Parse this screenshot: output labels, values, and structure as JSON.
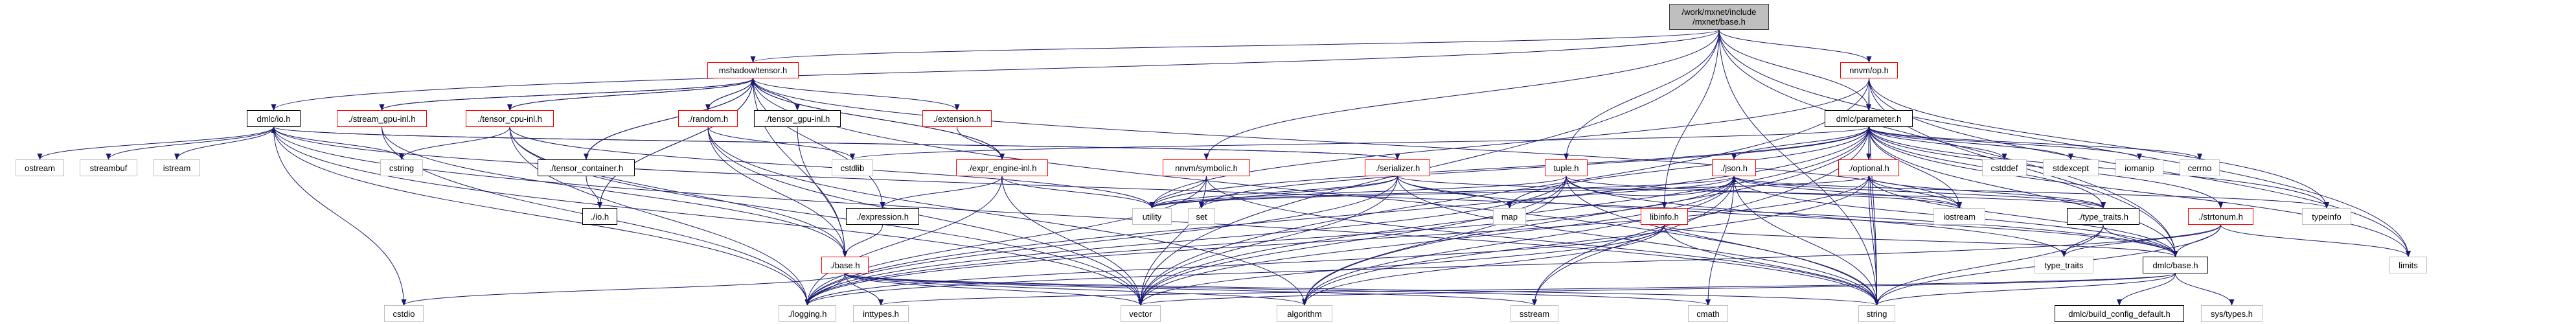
{
  "colors": {
    "edge": "#191970",
    "red": "#ff0000",
    "doc": "#000000",
    "ext": "#bfbfbf",
    "root_fill": "#bfbfbf"
  },
  "nodes": [
    {
      "id": "root",
      "label": "/work/mxnet/include\n/mxnet/base.h",
      "style": "root"
    },
    {
      "id": "mshadow_tensor",
      "label": "mshadow/tensor.h",
      "style": "red"
    },
    {
      "id": "nnvm_op",
      "label": "nnvm/op.h",
      "style": "red"
    },
    {
      "id": "dmlc_io",
      "label": "dmlc/io.h",
      "style": "doc"
    },
    {
      "id": "stream_gpu",
      "label": "./stream_gpu-inl.h",
      "style": "red"
    },
    {
      "id": "tensor_cpu",
      "label": "./tensor_cpu-inl.h",
      "style": "red"
    },
    {
      "id": "random",
      "label": "./random.h",
      "style": "red"
    },
    {
      "id": "tensor_gpu",
      "label": "./tensor_gpu-inl.h",
      "style": "doc"
    },
    {
      "id": "extension",
      "label": "./extension.h",
      "style": "red"
    },
    {
      "id": "dmlc_parameter",
      "label": "dmlc/parameter.h",
      "style": "doc"
    },
    {
      "id": "ostream",
      "label": "ostream",
      "style": "ext"
    },
    {
      "id": "streambuf",
      "label": "streambuf",
      "style": "ext"
    },
    {
      "id": "istream",
      "label": "istream",
      "style": "ext"
    },
    {
      "id": "cstring",
      "label": "cstring",
      "style": "ext"
    },
    {
      "id": "tensor_container",
      "label": "./tensor_container.h",
      "style": "doc"
    },
    {
      "id": "cstdlib",
      "label": "cstdlib",
      "style": "ext"
    },
    {
      "id": "expr_engine",
      "label": "./expr_engine-inl.h",
      "style": "red"
    },
    {
      "id": "nnvm_symbolic",
      "label": "nnvm/symbolic.h",
      "style": "red"
    },
    {
      "id": "serializer",
      "label": "./serializer.h",
      "style": "red"
    },
    {
      "id": "tuple",
      "label": "tuple.h",
      "style": "red"
    },
    {
      "id": "json",
      "label": "./json.h",
      "style": "red"
    },
    {
      "id": "optional",
      "label": "./optional.h",
      "style": "red"
    },
    {
      "id": "cstddef",
      "label": "cstddef",
      "style": "ext"
    },
    {
      "id": "stdexcept",
      "label": "stdexcept",
      "style": "ext"
    },
    {
      "id": "iomanip",
      "label": "iomanip",
      "style": "ext"
    },
    {
      "id": "cerrno",
      "label": "cerrno",
      "style": "ext"
    },
    {
      "id": "mshadow_io",
      "label": "./io.h",
      "style": "doc"
    },
    {
      "id": "expression",
      "label": "./expression.h",
      "style": "doc"
    },
    {
      "id": "utility",
      "label": "utility",
      "style": "ext"
    },
    {
      "id": "set",
      "label": "set",
      "style": "ext"
    },
    {
      "id": "map",
      "label": "map",
      "style": "ext"
    },
    {
      "id": "libinfo",
      "label": "libinfo.h",
      "style": "red"
    },
    {
      "id": "iostream",
      "label": "iostream",
      "style": "ext"
    },
    {
      "id": "type_traits_h",
      "label": "./type_traits.h",
      "style": "doc"
    },
    {
      "id": "strtonum",
      "label": "./strtonum.h",
      "style": "red"
    },
    {
      "id": "typeinfo",
      "label": "typeinfo",
      "style": "ext"
    },
    {
      "id": "mshadow_base",
      "label": "./base.h",
      "style": "red"
    },
    {
      "id": "type_traits",
      "label": "type_traits",
      "style": "ext"
    },
    {
      "id": "dmlc_base",
      "label": "dmlc/base.h",
      "style": "doc"
    },
    {
      "id": "limits",
      "label": "limits",
      "style": "ext"
    },
    {
      "id": "cstdio",
      "label": "cstdio",
      "style": "ext"
    },
    {
      "id": "logging",
      "label": "./logging.h",
      "style": "ext"
    },
    {
      "id": "inttypes",
      "label": "inttypes.h",
      "style": "ext"
    },
    {
      "id": "vector",
      "label": "vector",
      "style": "ext"
    },
    {
      "id": "algorithm",
      "label": "algorithm",
      "style": "ext"
    },
    {
      "id": "sstream",
      "label": "sstream",
      "style": "ext"
    },
    {
      "id": "cmath",
      "label": "cmath",
      "style": "ext"
    },
    {
      "id": "string",
      "label": "string",
      "style": "ext"
    },
    {
      "id": "build_config",
      "label": "dmlc/build_config_default.h",
      "style": "doc"
    },
    {
      "id": "sys_types",
      "label": "sys/types.h",
      "style": "ext"
    }
  ],
  "edges": [
    [
      "root",
      "mshadow_tensor"
    ],
    [
      "root",
      "dmlc_io"
    ],
    [
      "root",
      "nnvm_op"
    ],
    [
      "root",
      "dmlc_parameter"
    ],
    [
      "root",
      "tuple"
    ],
    [
      "root",
      "libinfo"
    ],
    [
      "root",
      "nnvm_symbolic"
    ],
    [
      "root",
      "dmlc_base"
    ],
    [
      "root",
      "string"
    ],
    [
      "root",
      "limits"
    ],
    [
      "root",
      "vector"
    ],
    [
      "dmlc_io",
      "ostream"
    ],
    [
      "dmlc_io",
      "streambuf"
    ],
    [
      "dmlc_io",
      "istream"
    ],
    [
      "dmlc_io",
      "cstring"
    ],
    [
      "dmlc_io",
      "cstdio"
    ],
    [
      "dmlc_io",
      "vector"
    ],
    [
      "dmlc_io",
      "string"
    ],
    [
      "dmlc_io",
      "logging"
    ],
    [
      "dmlc_io",
      "dmlc_base"
    ],
    [
      "dmlc_io",
      "serializer"
    ],
    [
      "mshadow_tensor",
      "stream_gpu"
    ],
    [
      "mshadow_tensor",
      "tensor_cpu"
    ],
    [
      "mshadow_tensor",
      "tensor_container"
    ],
    [
      "mshadow_tensor",
      "mshadow_io"
    ],
    [
      "mshadow_tensor",
      "random"
    ],
    [
      "mshadow_tensor",
      "tensor_gpu"
    ],
    [
      "mshadow_tensor",
      "extension"
    ],
    [
      "mshadow_tensor",
      "expr_engine"
    ],
    [
      "mshadow_tensor",
      "expression"
    ],
    [
      "mshadow_tensor",
      "mshadow_base"
    ],
    [
      "mshadow_tensor",
      "string"
    ],
    [
      "mshadow_tensor",
      "iostream"
    ],
    [
      "stream_gpu",
      "mshadow_tensor"
    ],
    [
      "stream_gpu",
      "mshadow_base"
    ],
    [
      "stream_gpu",
      "logging"
    ],
    [
      "tensor_cpu",
      "mshadow_tensor"
    ],
    [
      "tensor_cpu",
      "cstring"
    ],
    [
      "tensor_cpu",
      "mshadow_base"
    ],
    [
      "tensor_cpu",
      "vector"
    ],
    [
      "tensor_cpu",
      "utility"
    ],
    [
      "tensor_cpu",
      "logging"
    ],
    [
      "tensor_container",
      "mshadow_tensor"
    ],
    [
      "tensor_container",
      "mshadow_io"
    ],
    [
      "mshadow_io",
      "mshadow_tensor"
    ],
    [
      "random",
      "mshadow_tensor"
    ],
    [
      "random",
      "cstdlib"
    ],
    [
      "random",
      "mshadow_base"
    ],
    [
      "random",
      "vector"
    ],
    [
      "random",
      "algorithm"
    ],
    [
      "tensor_gpu",
      "mshadow_tensor"
    ],
    [
      "tensor_gpu",
      "mshadow_base"
    ],
    [
      "extension",
      "expr_engine"
    ],
    [
      "expr_engine",
      "mshadow_tensor"
    ],
    [
      "expr_engine",
      "expression"
    ],
    [
      "expr_engine",
      "utility"
    ],
    [
      "expr_engine",
      "vector"
    ],
    [
      "expr_engine",
      "logging"
    ],
    [
      "expression",
      "mshadow_base"
    ],
    [
      "mshadow_base",
      "logging"
    ],
    [
      "mshadow_base",
      "inttypes"
    ],
    [
      "mshadow_base",
      "vector"
    ],
    [
      "mshadow_base",
      "algorithm"
    ],
    [
      "mshadow_base",
      "sstream"
    ],
    [
      "mshadow_base",
      "cmath"
    ],
    [
      "mshadow_base",
      "string"
    ],
    [
      "mshadow_base",
      "cstdio"
    ],
    [
      "nnvm_op",
      "dmlc_parameter"
    ],
    [
      "nnvm_op",
      "string"
    ],
    [
      "nnvm_op",
      "vector"
    ],
    [
      "nnvm_op",
      "utility"
    ],
    [
      "nnvm_op",
      "typeinfo"
    ],
    [
      "nnvm_op",
      "limits"
    ],
    [
      "nnvm_op",
      "dmlc_base"
    ],
    [
      "nnvm_symbolic",
      "utility"
    ],
    [
      "nnvm_symbolic",
      "vector"
    ],
    [
      "nnvm_symbolic",
      "string"
    ],
    [
      "nnvm_symbolic",
      "logging"
    ],
    [
      "dmlc_parameter",
      "cstdlib"
    ],
    [
      "dmlc_parameter",
      "json"
    ],
    [
      "dmlc_parameter",
      "optional"
    ],
    [
      "dmlc_parameter",
      "type_traits_h"
    ],
    [
      "dmlc_parameter",
      "strtonum"
    ],
    [
      "dmlc_parameter",
      "logging"
    ],
    [
      "dmlc_parameter",
      "cstddef"
    ],
    [
      "dmlc_parameter",
      "stdexcept"
    ],
    [
      "dmlc_parameter",
      "iomanip"
    ],
    [
      "dmlc_parameter",
      "cerrno"
    ],
    [
      "dmlc_parameter",
      "iostream"
    ],
    [
      "dmlc_parameter",
      "map"
    ],
    [
      "dmlc_parameter",
      "set"
    ],
    [
      "dmlc_parameter",
      "string"
    ],
    [
      "dmlc_parameter",
      "vector"
    ],
    [
      "dmlc_parameter",
      "typeinfo"
    ],
    [
      "dmlc_parameter",
      "limits"
    ],
    [
      "dmlc_parameter",
      "algorithm"
    ],
    [
      "dmlc_parameter",
      "sstream"
    ],
    [
      "dmlc_parameter",
      "utility"
    ],
    [
      "dmlc_parameter",
      "dmlc_base"
    ],
    [
      "serializer",
      "map"
    ],
    [
      "serializer",
      "set"
    ],
    [
      "serializer",
      "utility"
    ],
    [
      "serializer",
      "vector"
    ],
    [
      "serializer",
      "string"
    ],
    [
      "serializer",
      "type_traits_h"
    ],
    [
      "serializer",
      "dmlc_base"
    ],
    [
      "serializer",
      "logging"
    ],
    [
      "serializer",
      "dmlc_io"
    ],
    [
      "tuple",
      "vector"
    ],
    [
      "tuple",
      "utility"
    ],
    [
      "tuple",
      "string"
    ],
    [
      "tuple",
      "algorithm"
    ],
    [
      "tuple",
      "iostream"
    ],
    [
      "tuple",
      "type_traits"
    ],
    [
      "tuple",
      "logging"
    ],
    [
      "tuple",
      "json"
    ],
    [
      "json",
      "map"
    ],
    [
      "json",
      "vector"
    ],
    [
      "json",
      "string"
    ],
    [
      "json",
      "sstream"
    ],
    [
      "json",
      "iostream"
    ],
    [
      "json",
      "utility"
    ],
    [
      "json",
      "algorithm"
    ],
    [
      "json",
      "typeinfo"
    ],
    [
      "json",
      "type_traits_h"
    ],
    [
      "json",
      "logging"
    ],
    [
      "json",
      "cmath"
    ],
    [
      "json",
      "dmlc_base"
    ],
    [
      "optional",
      "iostream"
    ],
    [
      "optional",
      "string"
    ],
    [
      "optional",
      "utility"
    ],
    [
      "optional",
      "algorithm"
    ],
    [
      "optional",
      "type_traits_h"
    ],
    [
      "optional",
      "logging"
    ],
    [
      "optional",
      "dmlc_base"
    ],
    [
      "libinfo",
      "string"
    ],
    [
      "libinfo",
      "vector"
    ],
    [
      "libinfo",
      "logging"
    ],
    [
      "libinfo",
      "dmlc_base"
    ],
    [
      "libinfo",
      "algorithm"
    ],
    [
      "type_traits_h",
      "type_traits"
    ],
    [
      "type_traits_h",
      "dmlc_base"
    ],
    [
      "type_traits_h",
      "string"
    ],
    [
      "strtonum",
      "type_traits"
    ],
    [
      "strtonum",
      "dmlc_base"
    ],
    [
      "strtonum",
      "limits"
    ],
    [
      "strtonum",
      "string"
    ],
    [
      "strtonum",
      "logging"
    ],
    [
      "dmlc_base",
      "build_config"
    ],
    [
      "dmlc_base",
      "sys_types"
    ],
    [
      "dmlc_base",
      "string"
    ],
    [
      "dmlc_base",
      "vector"
    ],
    [
      "dmlc_base",
      "inttypes"
    ]
  ]
}
